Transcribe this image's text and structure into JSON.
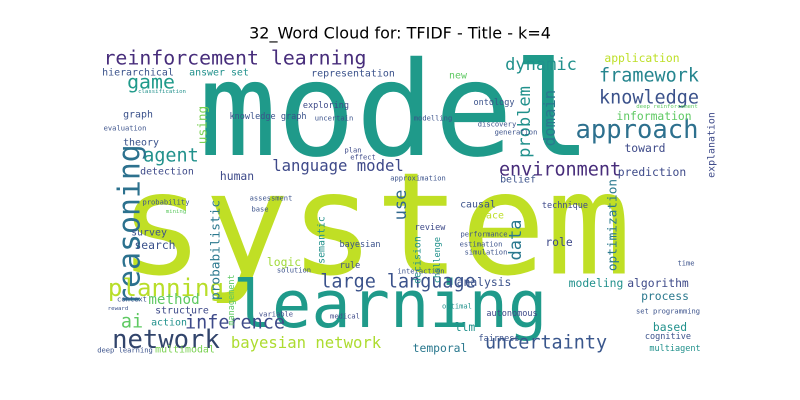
{
  "chart_data": {
    "type": "wordcloud",
    "title": "32_Word Cloud for: TFIDF - Title - k=4",
    "words": [
      {
        "text": "system",
        "weight": 100,
        "color": "#c0df25"
      },
      {
        "text": "model",
        "weight": 92,
        "color": "#1f9a8a"
      },
      {
        "text": "learning",
        "weight": 46,
        "color": "#1f9a8a"
      },
      {
        "text": "reinforcement learning",
        "weight": 14,
        "color": "#472d7b"
      },
      {
        "text": "reasoning",
        "weight": 21,
        "color": "#2c718e"
      },
      {
        "text": "planning",
        "weight": 17,
        "color": "#b8de29"
      },
      {
        "text": "network",
        "weight": 18,
        "color": "#31446b"
      },
      {
        "text": "language model",
        "weight": 11,
        "color": "#3e4989"
      },
      {
        "text": "environment",
        "weight": 13,
        "color": "#472c7a"
      },
      {
        "text": "uncertainty",
        "weight": 13,
        "color": "#39568c"
      },
      {
        "text": "approach",
        "weight": 18,
        "color": "#2d708e"
      },
      {
        "text": "framework",
        "weight": 13,
        "color": "#25858e"
      },
      {
        "text": "knowledge",
        "weight": 13,
        "color": "#3b528b"
      },
      {
        "text": "dynamic",
        "weight": 12,
        "color": "#21918c"
      },
      {
        "text": "large language",
        "weight": 13,
        "color": "#3b528b"
      },
      {
        "text": "bayesian network",
        "weight": 11,
        "color": "#addc30"
      },
      {
        "text": "inference",
        "weight": 13,
        "color": "#3e4a89"
      },
      {
        "text": "agent",
        "weight": 13,
        "color": "#21918c"
      },
      {
        "text": "problem",
        "weight": 12,
        "color": "#21918c"
      },
      {
        "text": "domain",
        "weight": 11,
        "color": "#2a788e"
      },
      {
        "text": "data",
        "weight": 12,
        "color": "#2a788e"
      },
      {
        "text": "use",
        "weight": 12,
        "color": "#31688e"
      },
      {
        "text": "game",
        "weight": 14,
        "color": "#1f9a8a"
      },
      {
        "text": "using",
        "weight": 9,
        "color": "#7ad151"
      },
      {
        "text": "optimization",
        "weight": 9,
        "color": "#2a788e"
      },
      {
        "text": "probabilistic",
        "weight": 9,
        "color": "#2a788e"
      },
      {
        "text": "algorithm",
        "weight": 8,
        "color": "#3e4a89"
      },
      {
        "text": "modeling",
        "weight": 8,
        "color": "#21918c"
      },
      {
        "text": "analysis",
        "weight": 8,
        "color": "#3b528b"
      },
      {
        "text": "information",
        "weight": 8,
        "color": "#5ec962"
      },
      {
        "text": "prediction",
        "weight": 8,
        "color": "#3e4a89"
      },
      {
        "text": "application",
        "weight": 8,
        "color": "#bddf26"
      },
      {
        "text": "toward",
        "weight": 8,
        "color": "#3e4a89"
      },
      {
        "text": "explanation",
        "weight": 7,
        "color": "#3e4a89"
      },
      {
        "text": "ai",
        "weight": 13,
        "color": "#5ec962"
      },
      {
        "text": "method",
        "weight": 10,
        "color": "#5ec962"
      },
      {
        "text": "structure",
        "weight": 7,
        "color": "#3e4a89"
      },
      {
        "text": "action",
        "weight": 7,
        "color": "#21918c"
      },
      {
        "text": "multimodal",
        "weight": 7,
        "color": "#7ad151"
      },
      {
        "text": "search",
        "weight": 8,
        "color": "#3b528b"
      },
      {
        "text": "logic",
        "weight": 8,
        "color": "#a0da39"
      },
      {
        "text": "human",
        "weight": 8,
        "color": "#3e4a89"
      },
      {
        "text": "detection",
        "weight": 7,
        "color": "#3e4a89"
      },
      {
        "text": "graph",
        "weight": 7,
        "color": "#3b528b"
      },
      {
        "text": "theory",
        "weight": 7,
        "color": "#3b528b"
      },
      {
        "text": "hierarchical",
        "weight": 7,
        "color": "#3b528b"
      },
      {
        "text": "answer set",
        "weight": 7,
        "color": "#21918c"
      },
      {
        "text": "representation",
        "weight": 7,
        "color": "#3b528b"
      },
      {
        "text": "management",
        "weight": 6,
        "color": "#5ec962"
      },
      {
        "text": "semantic",
        "weight": 7,
        "color": "#21918c"
      },
      {
        "text": "decision",
        "weight": 7,
        "color": "#21918c"
      },
      {
        "text": "challenge",
        "weight": 6,
        "color": "#21918c"
      },
      {
        "text": "causal",
        "weight": 7,
        "color": "#3b528b"
      },
      {
        "text": "space",
        "weight": 7,
        "color": "#bddf26"
      },
      {
        "text": "belief",
        "weight": 7,
        "color": "#3b528b"
      },
      {
        "text": "role",
        "weight": 8,
        "color": "#3e4a89"
      },
      {
        "text": "process",
        "weight": 8,
        "color": "#2a788e"
      },
      {
        "text": "based",
        "weight": 8,
        "color": "#21918c"
      },
      {
        "text": "cognitive",
        "weight": 6,
        "color": "#3b528b"
      },
      {
        "text": "multiagent",
        "weight": 6,
        "color": "#21918c"
      },
      {
        "text": "llm",
        "weight": 8,
        "color": "#21918c"
      },
      {
        "text": "temporal",
        "weight": 8,
        "color": "#2a788e"
      },
      {
        "text": "survey",
        "weight": 7,
        "color": "#3b528b"
      },
      {
        "text": "knowledge graph",
        "weight": 6,
        "color": "#3b528b"
      },
      {
        "text": "new",
        "weight": 7,
        "color": "#5ec962"
      },
      {
        "text": "ontology",
        "weight": 6,
        "color": "#3b528b"
      },
      {
        "text": "review",
        "weight": 6,
        "color": "#3e4a89"
      },
      {
        "text": "bayesian",
        "weight": 6,
        "color": "#3b528b"
      },
      {
        "text": "deep learning",
        "weight": 5,
        "color": "#3b528b"
      },
      {
        "text": "fairness",
        "weight": 6,
        "color": "#3b528b"
      },
      {
        "text": "solution",
        "weight": 5,
        "color": "#3b528b"
      },
      {
        "text": "rule",
        "weight": 6,
        "color": "#3e4a89"
      },
      {
        "text": "technique",
        "weight": 6,
        "color": "#3e4a89"
      },
      {
        "text": "interaction",
        "weight": 5,
        "color": "#3b528b"
      },
      {
        "text": "exploring",
        "weight": 6,
        "color": "#3e4a89"
      },
      {
        "text": "uncertain",
        "weight": 5,
        "color": "#3b528b"
      },
      {
        "text": "medical",
        "weight": 5,
        "color": "#3e4a89"
      },
      {
        "text": "autonomous",
        "weight": 6,
        "color": "#3e4a89"
      },
      {
        "text": "optimal",
        "weight": 5,
        "color": "#21918c"
      },
      {
        "text": "variable",
        "weight": 5,
        "color": "#3e4a89"
      },
      {
        "text": "context",
        "weight": 5,
        "color": "#3b528b"
      },
      {
        "text": "reward",
        "weight": 4,
        "color": "#3b528b"
      },
      {
        "text": "effect",
        "weight": 5,
        "color": "#3e4a89"
      },
      {
        "text": "plan",
        "weight": 5,
        "color": "#3e4a89"
      },
      {
        "text": "evaluation",
        "weight": 5,
        "color": "#3b528b"
      },
      {
        "text": "classification",
        "weight": 4,
        "color": "#21918c"
      },
      {
        "text": "generation",
        "weight": 5,
        "color": "#3b528b"
      },
      {
        "text": "discovery",
        "weight": 5,
        "color": "#3b528b"
      },
      {
        "text": "set programming",
        "weight": 5,
        "color": "#3b528b"
      },
      {
        "text": "time",
        "weight": 5,
        "color": "#3b528b"
      },
      {
        "text": "deep reinforcement",
        "weight": 4,
        "color": "#5ec962"
      },
      {
        "text": "modelling",
        "weight": 5,
        "color": "#3b528b"
      },
      {
        "text": "estimation",
        "weight": 5,
        "color": "#3b528b"
      },
      {
        "text": "simulation",
        "weight": 5,
        "color": "#3b528b"
      },
      {
        "text": "performance",
        "weight": 5,
        "color": "#3b528b"
      },
      {
        "text": "assessment",
        "weight": 5,
        "color": "#3b528b"
      },
      {
        "text": "base",
        "weight": 5,
        "color": "#3b528b"
      },
      {
        "text": "probability",
        "weight": 5,
        "color": "#3b528b"
      },
      {
        "text": "mining",
        "weight": 4,
        "color": "#5ec962"
      },
      {
        "text": "approximation",
        "weight": 5,
        "color": "#3b528b"
      }
    ]
  }
}
